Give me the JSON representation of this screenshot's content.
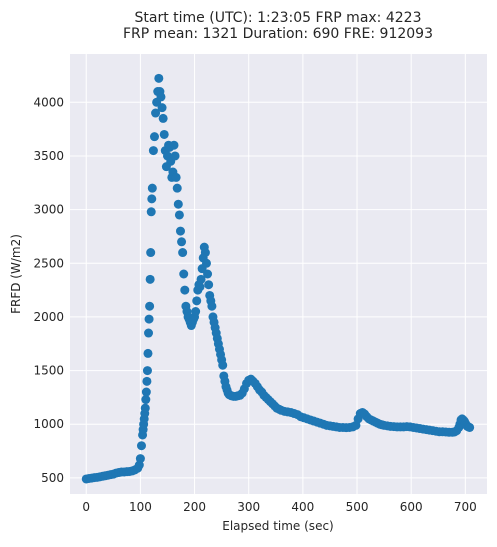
{
  "chart_data": {
    "type": "scatter",
    "title_line1": "Start time (UTC): 1:23:05 FRP max: 4223",
    "title_line2": "FRP mean: 1321 Duration: 690 FRE: 912093",
    "xlabel": "Elapsed time (sec)",
    "ylabel": "FRFD (W/m2)",
    "xlim": [
      -30,
      740
    ],
    "ylim": [
      350,
      4450
    ],
    "xticks": [
      0,
      100,
      200,
      300,
      400,
      500,
      600,
      700
    ],
    "yticks": [
      500,
      1000,
      1500,
      2000,
      2500,
      3000,
      3500,
      4000
    ],
    "grid": true,
    "color": "#1f77b4",
    "points": [
      [
        0,
        490
      ],
      [
        5,
        495
      ],
      [
        10,
        498
      ],
      [
        15,
        503
      ],
      [
        20,
        505
      ],
      [
        25,
        510
      ],
      [
        30,
        515
      ],
      [
        35,
        520
      ],
      [
        40,
        525
      ],
      [
        45,
        530
      ],
      [
        50,
        535
      ],
      [
        55,
        545
      ],
      [
        60,
        550
      ],
      [
        65,
        555
      ],
      [
        70,
        555
      ],
      [
        75,
        558
      ],
      [
        80,
        560
      ],
      [
        85,
        565
      ],
      [
        90,
        575
      ],
      [
        95,
        590
      ],
      [
        98,
        620
      ],
      [
        100,
        680
      ],
      [
        102,
        800
      ],
      [
        104,
        900
      ],
      [
        105,
        950
      ],
      [
        106,
        1000
      ],
      [
        107,
        1050
      ],
      [
        108,
        1100
      ],
      [
        109,
        1150
      ],
      [
        110,
        1230
      ],
      [
        111,
        1300
      ],
      [
        112,
        1400
      ],
      [
        113,
        1500
      ],
      [
        114,
        1660
      ],
      [
        115,
        1850
      ],
      [
        116,
        1980
      ],
      [
        117,
        2100
      ],
      [
        118,
        2350
      ],
      [
        119,
        2600
      ],
      [
        120,
        2980
      ],
      [
        121,
        3100
      ],
      [
        122,
        3200
      ],
      [
        124,
        3550
      ],
      [
        126,
        3680
      ],
      [
        128,
        3900
      ],
      [
        130,
        4000
      ],
      [
        132,
        4100
      ],
      [
        134,
        4223
      ],
      [
        136,
        4100
      ],
      [
        138,
        4050
      ],
      [
        140,
        3950
      ],
      [
        142,
        3850
      ],
      [
        144,
        3700
      ],
      [
        146,
        3550
      ],
      [
        148,
        3400
      ],
      [
        150,
        3500
      ],
      [
        152,
        3600
      ],
      [
        154,
        3580
      ],
      [
        156,
        3450
      ],
      [
        158,
        3300
      ],
      [
        160,
        3350
      ],
      [
        162,
        3600
      ],
      [
        164,
        3500
      ],
      [
        166,
        3300
      ],
      [
        168,
        3200
      ],
      [
        170,
        3050
      ],
      [
        172,
        2950
      ],
      [
        174,
        2800
      ],
      [
        176,
        2700
      ],
      [
        178,
        2600
      ],
      [
        180,
        2400
      ],
      [
        182,
        2250
      ],
      [
        184,
        2100
      ],
      [
        186,
        2050
      ],
      [
        188,
        2000
      ],
      [
        190,
        1980
      ],
      [
        192,
        1950
      ],
      [
        194,
        1920
      ],
      [
        196,
        1950
      ],
      [
        198,
        1980
      ],
      [
        200,
        2000
      ],
      [
        202,
        2050
      ],
      [
        204,
        2150
      ],
      [
        206,
        2250
      ],
      [
        208,
        2300
      ],
      [
        210,
        2280
      ],
      [
        212,
        2350
      ],
      [
        214,
        2450
      ],
      [
        216,
        2550
      ],
      [
        218,
        2650
      ],
      [
        220,
        2600
      ],
      [
        222,
        2500
      ],
      [
        224,
        2400
      ],
      [
        226,
        2300
      ],
      [
        228,
        2200
      ],
      [
        230,
        2150
      ],
      [
        232,
        2100
      ],
      [
        234,
        2000
      ],
      [
        236,
        1950
      ],
      [
        238,
        1900
      ],
      [
        240,
        1850
      ],
      [
        242,
        1800
      ],
      [
        244,
        1750
      ],
      [
        246,
        1700
      ],
      [
        248,
        1650
      ],
      [
        250,
        1600
      ],
      [
        252,
        1550
      ],
      [
        254,
        1450
      ],
      [
        256,
        1400
      ],
      [
        258,
        1350
      ],
      [
        260,
        1320
      ],
      [
        262,
        1290
      ],
      [
        264,
        1275
      ],
      [
        268,
        1265
      ],
      [
        272,
        1260
      ],
      [
        276,
        1260
      ],
      [
        280,
        1265
      ],
      [
        284,
        1270
      ],
      [
        288,
        1290
      ],
      [
        292,
        1330
      ],
      [
        296,
        1380
      ],
      [
        300,
        1410
      ],
      [
        304,
        1420
      ],
      [
        308,
        1400
      ],
      [
        312,
        1380
      ],
      [
        316,
        1350
      ],
      [
        320,
        1320
      ],
      [
        324,
        1300
      ],
      [
        328,
        1270
      ],
      [
        332,
        1250
      ],
      [
        336,
        1230
      ],
      [
        340,
        1210
      ],
      [
        344,
        1190
      ],
      [
        348,
        1170
      ],
      [
        352,
        1150
      ],
      [
        356,
        1140
      ],
      [
        360,
        1130
      ],
      [
        366,
        1120
      ],
      [
        372,
        1115
      ],
      [
        378,
        1110
      ],
      [
        384,
        1100
      ],
      [
        390,
        1090
      ],
      [
        396,
        1070
      ],
      [
        402,
        1060
      ],
      [
        408,
        1050
      ],
      [
        414,
        1040
      ],
      [
        420,
        1030
      ],
      [
        426,
        1020
      ],
      [
        432,
        1010
      ],
      [
        438,
        1000
      ],
      [
        444,
        990
      ],
      [
        450,
        985
      ],
      [
        456,
        980
      ],
      [
        462,
        975
      ],
      [
        468,
        970
      ],
      [
        474,
        970
      ],
      [
        480,
        968
      ],
      [
        486,
        970
      ],
      [
        492,
        975
      ],
      [
        498,
        990
      ],
      [
        502,
        1050
      ],
      [
        506,
        1100
      ],
      [
        510,
        1110
      ],
      [
        514,
        1095
      ],
      [
        518,
        1070
      ],
      [
        522,
        1050
      ],
      [
        526,
        1040
      ],
      [
        530,
        1030
      ],
      [
        534,
        1020
      ],
      [
        538,
        1010
      ],
      [
        542,
        1000
      ],
      [
        546,
        995
      ],
      [
        550,
        990
      ],
      [
        556,
        985
      ],
      [
        562,
        980
      ],
      [
        568,
        978
      ],
      [
        574,
        975
      ],
      [
        580,
        975
      ],
      [
        586,
        975
      ],
      [
        592,
        978
      ],
      [
        598,
        975
      ],
      [
        604,
        970
      ],
      [
        610,
        965
      ],
      [
        616,
        960
      ],
      [
        622,
        955
      ],
      [
        628,
        950
      ],
      [
        634,
        945
      ],
      [
        640,
        940
      ],
      [
        646,
        935
      ],
      [
        652,
        930
      ],
      [
        658,
        930
      ],
      [
        664,
        928
      ],
      [
        670,
        925
      ],
      [
        676,
        925
      ],
      [
        680,
        928
      ],
      [
        684,
        940
      ],
      [
        688,
        970
      ],
      [
        690,
        1000
      ],
      [
        692,
        1040
      ],
      [
        694,
        1050
      ],
      [
        696,
        1040
      ],
      [
        698,
        1030
      ],
      [
        700,
        1010
      ],
      [
        702,
        990
      ],
      [
        704,
        980
      ],
      [
        706,
        975
      ],
      [
        708,
        970
      ]
    ]
  }
}
